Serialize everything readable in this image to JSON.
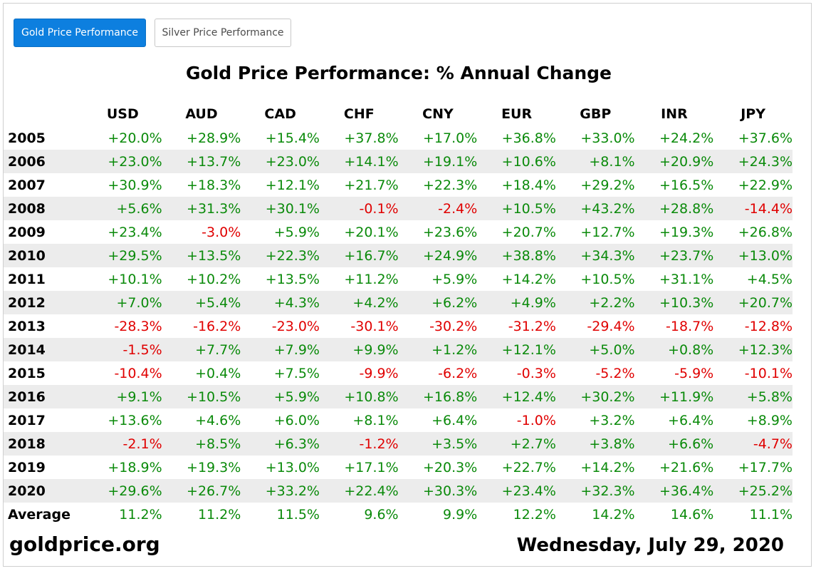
{
  "tabs": [
    {
      "label": "Gold Price Performance",
      "active": true
    },
    {
      "label": "Silver Price Performance",
      "active": false
    }
  ],
  "colors": {
    "positive": "#0a8a0a",
    "negative": "#e00000",
    "accent": "#0d7fdf",
    "row_shade": "#ececec"
  },
  "footer": {
    "site": "goldprice.org",
    "date": "Wednesday, July 29, 2020"
  },
  "chart_data": {
    "type": "table",
    "title": "Gold Price Performance: % Annual Change",
    "columns": [
      "USD",
      "AUD",
      "CAD",
      "CHF",
      "CNY",
      "EUR",
      "GBP",
      "INR",
      "JPY"
    ],
    "rows": [
      {
        "label": "2005",
        "values": [
          "+20.0%",
          "+28.9%",
          "+15.4%",
          "+37.8%",
          "+17.0%",
          "+36.8%",
          "+33.0%",
          "+24.2%",
          "+37.6%"
        ]
      },
      {
        "label": "2006",
        "values": [
          "+23.0%",
          "+13.7%",
          "+23.0%",
          "+14.1%",
          "+19.1%",
          "+10.6%",
          "+8.1%",
          "+20.9%",
          "+24.3%"
        ]
      },
      {
        "label": "2007",
        "values": [
          "+30.9%",
          "+18.3%",
          "+12.1%",
          "+21.7%",
          "+22.3%",
          "+18.4%",
          "+29.2%",
          "+16.5%",
          "+22.9%"
        ]
      },
      {
        "label": "2008",
        "values": [
          "+5.6%",
          "+31.3%",
          "+30.1%",
          "-0.1%",
          "-2.4%",
          "+10.5%",
          "+43.2%",
          "+28.8%",
          "-14.4%"
        ]
      },
      {
        "label": "2009",
        "values": [
          "+23.4%",
          "-3.0%",
          "+5.9%",
          "+20.1%",
          "+23.6%",
          "+20.7%",
          "+12.7%",
          "+19.3%",
          "+26.8%"
        ]
      },
      {
        "label": "2010",
        "values": [
          "+29.5%",
          "+13.5%",
          "+22.3%",
          "+16.7%",
          "+24.9%",
          "+38.8%",
          "+34.3%",
          "+23.7%",
          "+13.0%"
        ]
      },
      {
        "label": "2011",
        "values": [
          "+10.1%",
          "+10.2%",
          "+13.5%",
          "+11.2%",
          "+5.9%",
          "+14.2%",
          "+10.5%",
          "+31.1%",
          "+4.5%"
        ]
      },
      {
        "label": "2012",
        "values": [
          "+7.0%",
          "+5.4%",
          "+4.3%",
          "+4.2%",
          "+6.2%",
          "+4.9%",
          "+2.2%",
          "+10.3%",
          "+20.7%"
        ]
      },
      {
        "label": "2013",
        "values": [
          "-28.3%",
          "-16.2%",
          "-23.0%",
          "-30.1%",
          "-30.2%",
          "-31.2%",
          "-29.4%",
          "-18.7%",
          "-12.8%"
        ]
      },
      {
        "label": "2014",
        "values": [
          "-1.5%",
          "+7.7%",
          "+7.9%",
          "+9.9%",
          "+1.2%",
          "+12.1%",
          "+5.0%",
          "+0.8%",
          "+12.3%"
        ]
      },
      {
        "label": "2015",
        "values": [
          "-10.4%",
          "+0.4%",
          "+7.5%",
          "-9.9%",
          "-6.2%",
          "-0.3%",
          "-5.2%",
          "-5.9%",
          "-10.1%"
        ]
      },
      {
        "label": "2016",
        "values": [
          "+9.1%",
          "+10.5%",
          "+5.9%",
          "+10.8%",
          "+16.8%",
          "+12.4%",
          "+30.2%",
          "+11.9%",
          "+5.8%"
        ]
      },
      {
        "label": "2017",
        "values": [
          "+13.6%",
          "+4.6%",
          "+6.0%",
          "+8.1%",
          "+6.4%",
          "-1.0%",
          "+3.2%",
          "+6.4%",
          "+8.9%"
        ]
      },
      {
        "label": "2018",
        "values": [
          "-2.1%",
          "+8.5%",
          "+6.3%",
          "-1.2%",
          "+3.5%",
          "+2.7%",
          "+3.8%",
          "+6.6%",
          "-4.7%"
        ]
      },
      {
        "label": "2019",
        "values": [
          "+18.9%",
          "+19.3%",
          "+13.0%",
          "+17.1%",
          "+20.3%",
          "+22.7%",
          "+14.2%",
          "+21.6%",
          "+17.7%"
        ]
      },
      {
        "label": "2020",
        "values": [
          "+29.6%",
          "+26.7%",
          "+33.2%",
          "+22.4%",
          "+30.3%",
          "+23.4%",
          "+32.3%",
          "+36.4%",
          "+25.2%"
        ]
      }
    ],
    "average": {
      "label": "Average",
      "values": [
        "11.2%",
        "11.2%",
        "11.5%",
        "9.6%",
        "9.9%",
        "12.2%",
        "14.2%",
        "14.6%",
        "11.1%"
      ]
    }
  }
}
